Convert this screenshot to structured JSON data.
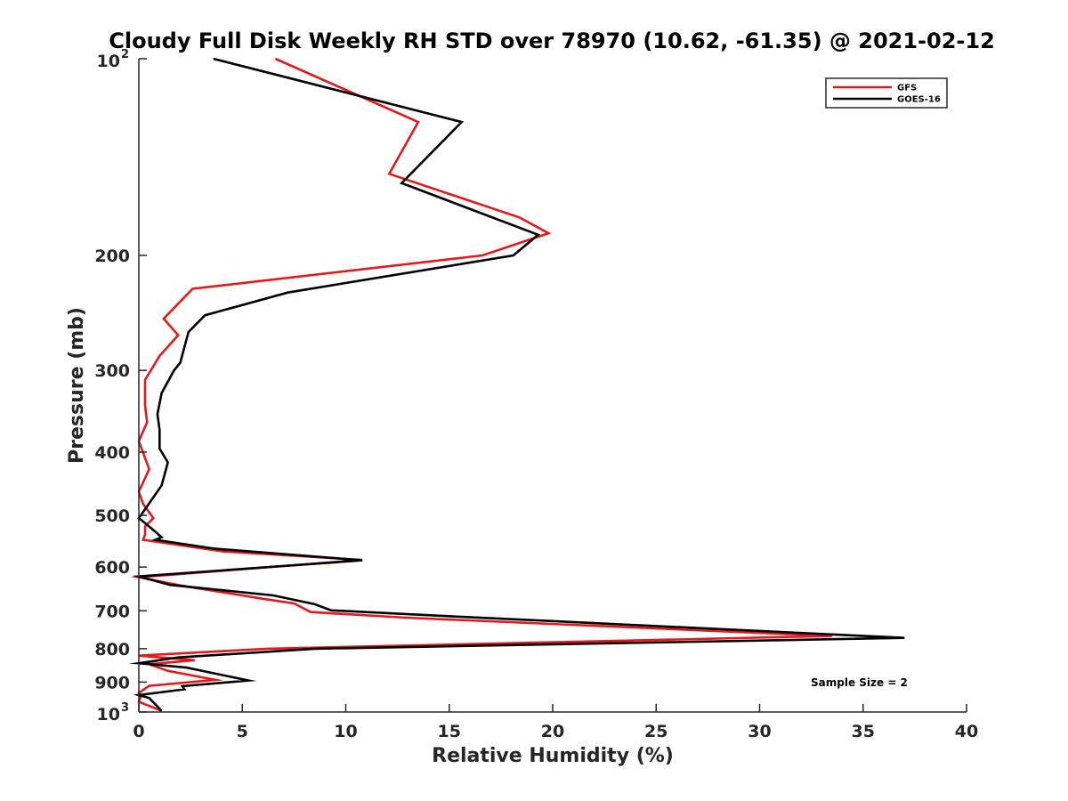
{
  "chart_data": {
    "type": "line",
    "title": "Cloudy Full Disk Weekly RH STD over 78970 (10.62, -61.35) @ 2021-02-12",
    "xlabel": "Relative Humidity (%)",
    "ylabel": "Pressure (mb)",
    "xlim": [
      0,
      40
    ],
    "ylim": [
      100,
      1000
    ],
    "y_scale": "log",
    "y_reversed": true,
    "grid": false,
    "legend_position": "top-right",
    "x_ticks": [
      "0",
      "5",
      "10",
      "15",
      "20",
      "25",
      "30",
      "35",
      "40"
    ],
    "y_ticks": [
      {
        "value": 100,
        "base": "10",
        "exp": "2"
      },
      {
        "value": 200,
        "label": "200"
      },
      {
        "value": 300,
        "label": "300"
      },
      {
        "value": 400,
        "label": "400"
      },
      {
        "value": 500,
        "label": "500"
      },
      {
        "value": 600,
        "label": "600"
      },
      {
        "value": 700,
        "label": "700"
      },
      {
        "value": 800,
        "label": "800"
      },
      {
        "value": 900,
        "label": "900"
      },
      {
        "value": 1000,
        "base": "10",
        "exp": "3"
      }
    ],
    "annotation": "Sample Size = 2",
    "series": [
      {
        "name": "GFS",
        "color": "#e31a1c",
        "points": [
          [
            6.6,
            100
          ],
          [
            13.5,
            125
          ],
          [
            12.1,
            150
          ],
          [
            18.4,
            175
          ],
          [
            19.8,
            185
          ],
          [
            16.6,
            200
          ],
          [
            2.6,
            225
          ],
          [
            1.2,
            250
          ],
          [
            1.9,
            265
          ],
          [
            1.0,
            285
          ],
          [
            0.3,
            310
          ],
          [
            0.3,
            340
          ],
          [
            0.4,
            360
          ],
          [
            0.0,
            385
          ],
          [
            0.5,
            425
          ],
          [
            0.0,
            460
          ],
          [
            0.2,
            480
          ],
          [
            0.7,
            505
          ],
          [
            0.3,
            520
          ],
          [
            0.3,
            535
          ],
          [
            0.2,
            545
          ],
          [
            4.1,
            568
          ],
          [
            10.8,
            585
          ],
          [
            0.0,
            622
          ],
          [
            2.1,
            641
          ],
          [
            6.0,
            671
          ],
          [
            7.5,
            682
          ],
          [
            8.3,
            703
          ],
          [
            12.9,
            717
          ],
          [
            33.5,
            765
          ],
          [
            6.2,
            800
          ],
          [
            0.0,
            820
          ],
          [
            2.7,
            833
          ],
          [
            0.5,
            845
          ],
          [
            1.4,
            865
          ],
          [
            3.7,
            893
          ],
          [
            0.5,
            912
          ],
          [
            0.0,
            935
          ],
          [
            0.1,
            945
          ],
          [
            0.0,
            965
          ],
          [
            1.1,
            996
          ]
        ]
      },
      {
        "name": "GOES-16",
        "color": "#000000",
        "points": [
          [
            3.6,
            100
          ],
          [
            15.6,
            125
          ],
          [
            12.7,
            155
          ],
          [
            17.5,
            177
          ],
          [
            19.3,
            186
          ],
          [
            18.1,
            200
          ],
          [
            7.2,
            228
          ],
          [
            3.2,
            247
          ],
          [
            2.4,
            262
          ],
          [
            2.0,
            292
          ],
          [
            1.7,
            300
          ],
          [
            1.1,
            325
          ],
          [
            0.9,
            350
          ],
          [
            1.0,
            370
          ],
          [
            1.0,
            395
          ],
          [
            1.4,
            415
          ],
          [
            1.1,
            450
          ],
          [
            0.0,
            505
          ],
          [
            0.5,
            520
          ],
          [
            1.1,
            540
          ],
          [
            0.8,
            545
          ],
          [
            3.6,
            562
          ],
          [
            10.8,
            586
          ],
          [
            0.0,
            620
          ],
          [
            1.5,
            639
          ],
          [
            6.5,
            663
          ],
          [
            8.5,
            684
          ],
          [
            9.3,
            699
          ],
          [
            14.4,
            712
          ],
          [
            37.0,
            770
          ],
          [
            8.5,
            800
          ],
          [
            1.9,
            825
          ],
          [
            0.0,
            842
          ],
          [
            2.3,
            855
          ],
          [
            5.3,
            895
          ],
          [
            2.1,
            913
          ],
          [
            2.2,
            923
          ],
          [
            0.0,
            942
          ],
          [
            0.5,
            952
          ],
          [
            1.1,
            996
          ]
        ]
      }
    ]
  }
}
